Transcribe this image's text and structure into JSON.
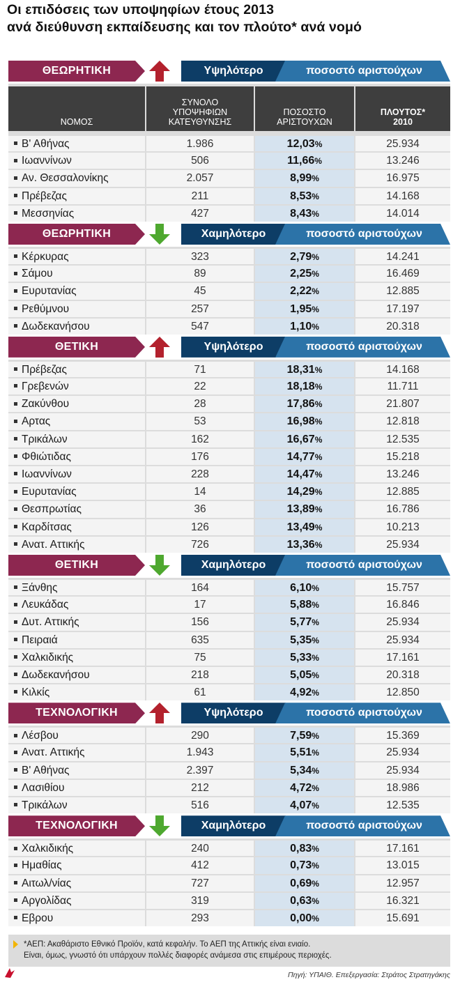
{
  "title": {
    "line1": "Οι επιδόσεις των υποψηφίων έτους 2013",
    "line2": "ανά διεύθυνση εκπαίδευσης και τον πλούτο* ανά νομό"
  },
  "columns": {
    "nomos": "ΝΟΜΟΣ",
    "total": [
      "ΣΥΝΟΛΟ",
      "ΥΠΟΨΗΦΙΩΝ",
      "ΚΑΤΕΥΘΥΝΣΗΣ"
    ],
    "pct": [
      "ΠΟΣΟΣΤΟ",
      "ΑΡΙΣΤΟΥΧΩΝ"
    ],
    "wealth": [
      "ΠΛΟΥΤΟΣ*",
      "2010"
    ]
  },
  "colors": {
    "section": "#8d2750",
    "up_arrow": "#b3212d",
    "down_arrow": "#4ea82f",
    "label_dark": "#0d3d66",
    "label_light": "#2c73a8",
    "pct_cell": "#d6e3ef"
  },
  "chart_data": {
    "type": "table",
    "percent_sign": "%",
    "sections": [
      {
        "name": "ΘΕΩΡΗΤΙΚΗ",
        "direction": "up",
        "arrow_icon": "up-arrow-icon",
        "label_a": "Υψηλότερο",
        "label_b": "ποσοστό αριστούχων",
        "rows": [
          {
            "nomos": "Β' Αθήνας",
            "total": "1.986",
            "pct": "12,03",
            "wealth": "25.934"
          },
          {
            "nomos": "Ιωαννίνων",
            "total": "506",
            "pct": "11,66",
            "wealth": "13.246"
          },
          {
            "nomos": "Αν. Θεσσαλονίκης",
            "total": "2.057",
            "pct": "8,99",
            "wealth": "16.975"
          },
          {
            "nomos": "Πρέβεζας",
            "total": "211",
            "pct": "8,53",
            "wealth": "14.168"
          },
          {
            "nomos": "Μεσσηνίας",
            "total": "427",
            "pct": "8,43",
            "wealth": "14.014"
          }
        ]
      },
      {
        "name": "ΘΕΩΡΗΤΙΚΗ",
        "direction": "down",
        "arrow_icon": "down-arrow-icon",
        "label_a": "Χαμηλότερο",
        "label_b": "ποσοστό αριστούχων",
        "rows": [
          {
            "nomos": "Κέρκυρας",
            "total": "323",
            "pct": "2,79",
            "wealth": "14.241"
          },
          {
            "nomos": "Σάμου",
            "total": "89",
            "pct": "2,25",
            "wealth": "16.469"
          },
          {
            "nomos": "Ευρυτανίας",
            "total": "45",
            "pct": "2,22",
            "wealth": "12.885"
          },
          {
            "nomos": "Ρεθύμνου",
            "total": "257",
            "pct": "1,95",
            "wealth": "17.197"
          },
          {
            "nomos": "Δωδεκανήσου",
            "total": "547",
            "pct": "1,10",
            "wealth": "20.318"
          }
        ]
      },
      {
        "name": "ΘΕΤΙΚΗ",
        "direction": "up",
        "arrow_icon": "up-arrow-icon",
        "label_a": "Υψηλότερο",
        "label_b": "ποσοστό αριστούχων",
        "rows": [
          {
            "nomos": "Πρέβεζας",
            "total": "71",
            "pct": "18,31",
            "wealth": "14.168"
          },
          {
            "nomos": "Γρεβενών",
            "total": "22",
            "pct": "18,18",
            "wealth": "11.711"
          },
          {
            "nomos": "Ζακύνθου",
            "total": "28",
            "pct": "17,86",
            "wealth": "21.807"
          },
          {
            "nomos": "Αρτας",
            "total": "53",
            "pct": "16,98",
            "wealth": "12.818"
          },
          {
            "nomos": "Τρικάλων",
            "total": "162",
            "pct": "16,67",
            "wealth": "12.535"
          },
          {
            "nomos": "Φθιώτιδας",
            "total": "176",
            "pct": "14,77",
            "wealth": "15.218"
          },
          {
            "nomos": "Ιωαννίνων",
            "total": "228",
            "pct": "14,47",
            "wealth": "13.246"
          },
          {
            "nomos": "Ευρυτανίας",
            "total": "14",
            "pct": "14,29",
            "wealth": "12.885"
          },
          {
            "nomos": "Θεσπρωτίας",
            "total": "36",
            "pct": "13,89",
            "wealth": "16.786"
          },
          {
            "nomos": "Καρδίτσας",
            "total": "126",
            "pct": "13,49",
            "wealth": "10.213"
          },
          {
            "nomos": "Ανατ. Αττικής",
            "total": "726",
            "pct": "13,36",
            "wealth": "25.934"
          }
        ]
      },
      {
        "name": "ΘΕΤΙΚΗ",
        "direction": "down",
        "arrow_icon": "down-arrow-icon",
        "label_a": "Χαμηλότερο",
        "label_b": "ποσοστό αριστούχων",
        "rows": [
          {
            "nomos": "Ξάνθης",
            "total": "164",
            "pct": "6,10",
            "wealth": "15.757"
          },
          {
            "nomos": "Λευκάδας",
            "total": "17",
            "pct": "5,88",
            "wealth": "16.846"
          },
          {
            "nomos": "Δυτ. Αττικής",
            "total": "156",
            "pct": "5,77",
            "wealth": "25.934"
          },
          {
            "nomos": "Πειραιά",
            "total": "635",
            "pct": "5,35",
            "wealth": "25.934"
          },
          {
            "nomos": "Χαλκιδικής",
            "total": "75",
            "pct": "5,33",
            "wealth": "17.161"
          },
          {
            "nomos": "Δωδεκανήσου",
            "total": "218",
            "pct": "5,05",
            "wealth": "20.318"
          },
          {
            "nomos": "Κιλκίς",
            "total": "61",
            "pct": "4,92",
            "wealth": "12.850"
          }
        ]
      },
      {
        "name": "ΤΕΧΝΟΛΟΓΙΚΗ",
        "direction": "up",
        "arrow_icon": "up-arrow-icon",
        "label_a": "Υψηλότερο",
        "label_b": "ποσοστό αριστούχων",
        "rows": [
          {
            "nomos": "Λέσβου",
            "total": "290",
            "pct": "7,59",
            "wealth": "15.369"
          },
          {
            "nomos": "Ανατ. Αττικής",
            "total": "1.943",
            "pct": "5,51",
            "wealth": "25.934"
          },
          {
            "nomos": "Β' Αθήνας",
            "total": "2.397",
            "pct": "5,34",
            "wealth": "25.934"
          },
          {
            "nomos": "Λασιθίου",
            "total": "212",
            "pct": "4,72",
            "wealth": "18.986"
          },
          {
            "nomos": "Τρικάλων",
            "total": "516",
            "pct": "4,07",
            "wealth": "12.535"
          }
        ]
      },
      {
        "name": "ΤΕΧΝΟΛΟΓΙΚΗ",
        "direction": "down",
        "arrow_icon": "down-arrow-icon",
        "label_a": "Χαμηλότερο",
        "label_b": "ποσοστό αριστούχων",
        "rows": [
          {
            "nomos": "Χαλκιδικής",
            "total": "240",
            "pct": "0,83",
            "wealth": "17.161"
          },
          {
            "nomos": "Ημαθίας",
            "total": "412",
            "pct": "0,73",
            "wealth": "13.015"
          },
          {
            "nomos": "Αιτωλ/νίας",
            "total": "727",
            "pct": "0,69",
            "wealth": "12.957"
          },
          {
            "nomos": "Αργολίδας",
            "total": "319",
            "pct": "0,63",
            "wealth": "16.321"
          },
          {
            "nomos": "Εβρου",
            "total": "293",
            "pct": "0,00",
            "wealth": "15.691"
          }
        ]
      }
    ]
  },
  "footnote": {
    "line1": "*ΑΕΠ: Ακαθάριστο Εθνικό Προϊόν, κατά κεφαλήν. Το ΑΕΠ της Αττικής είναι ενιαίο.",
    "line2": "Είναι, όμως, γνωστό ότι υπάρχουν πολλές διαφορές ανάμεσα στις επιμέρους περιοχές."
  },
  "source": "Πηγή: ΥΠΑΙΘ. Επεξεργασία: Στράτος Στρατηγάκης"
}
